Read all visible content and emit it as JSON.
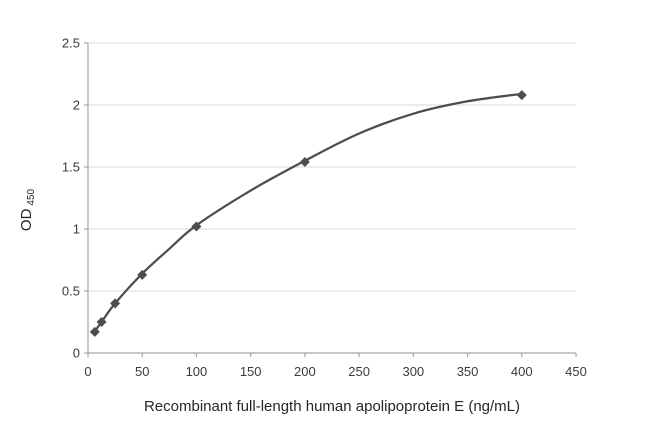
{
  "chart_data": {
    "type": "scatter",
    "title": "",
    "xlabel": "Recombinant full-length human apolipoprotein E (ng/mL)",
    "ylabel": {
      "main": "OD",
      "sub": "450"
    },
    "xlim": [
      0,
      450
    ],
    "ylim": [
      0,
      2.5
    ],
    "x_ticks": [
      0,
      50,
      100,
      150,
      200,
      250,
      300,
      350,
      400,
      450
    ],
    "y_ticks": [
      0,
      0.5,
      1,
      1.5,
      2,
      2.5
    ],
    "grid": "horizontal-gridlines-on",
    "legend": "none",
    "series": [
      {
        "name": "apolipoprotein-e-standards",
        "marker": "diamond",
        "x": [
          6.25,
          12.5,
          25,
          50,
          100,
          200,
          400
        ],
        "y": [
          0.17,
          0.25,
          0.4,
          0.63,
          1.02,
          1.54,
          2.08
        ]
      }
    ],
    "trend_curve": {
      "name": "fitted-standard-curve",
      "x": [
        5,
        12.5,
        25,
        50,
        75,
        100,
        150,
        200,
        250,
        300,
        350,
        400
      ],
      "y": [
        0.16,
        0.25,
        0.4,
        0.64,
        0.84,
        1.03,
        1.31,
        1.55,
        1.77,
        1.93,
        2.03,
        2.09
      ]
    },
    "colors": {
      "background": "#ffffff",
      "marker": "#4d4d4d",
      "curve": "#4d4d4d",
      "gridline": "#d9d9d9",
      "axis": "#a6a6a6",
      "tick_label": "#3b3b3b",
      "axis_title": "#262626"
    }
  }
}
